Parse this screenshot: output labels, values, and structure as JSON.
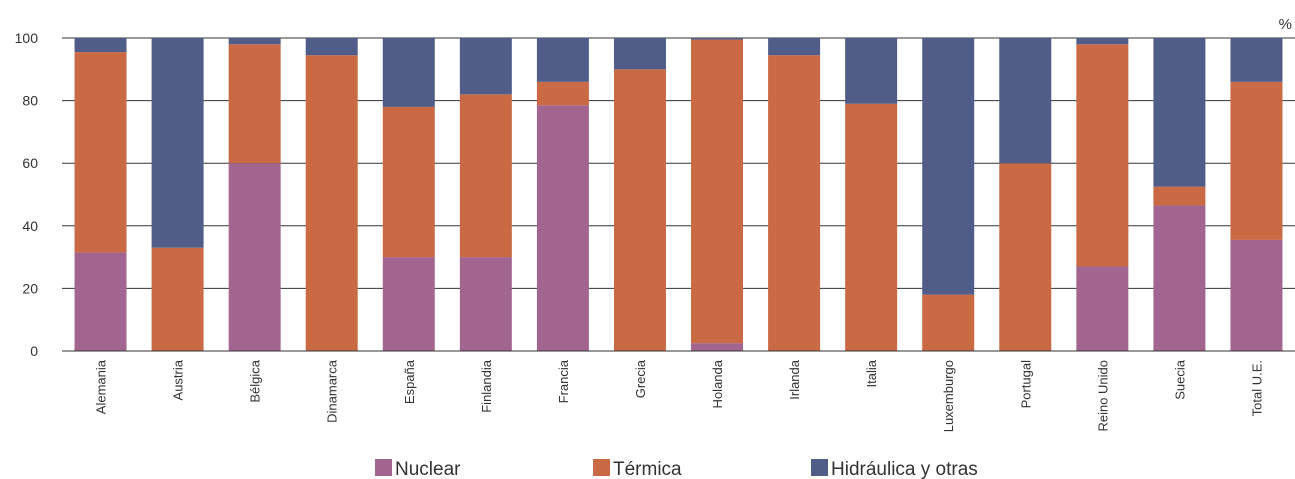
{
  "chart_data": {
    "type": "bar",
    "stacked": true,
    "unit_label": "%",
    "ylim": [
      0,
      100
    ],
    "yticks": [
      0,
      20,
      40,
      60,
      80,
      100
    ],
    "grid": true,
    "legend_position": "bottom",
    "categories": [
      "Alemania",
      "Austria",
      "Bélgica",
      "Dinamarca",
      "España",
      "Finlandia",
      "Francia",
      "Grecia",
      "Holanda",
      "Irlanda",
      "Italia",
      "Luxemburgo",
      "Portugal",
      "Reino Unido",
      "Suecia",
      "Total U.E."
    ],
    "series": [
      {
        "name": "Nuclear",
        "color": "#a2658f",
        "values": [
          31.5,
          0,
          60,
          0,
          30,
          30,
          78.5,
          0,
          2.5,
          0,
          0,
          0,
          0,
          27,
          46.5,
          35.5
        ]
      },
      {
        "name": "Térmica",
        "color": "#c96a45",
        "values": [
          64,
          33,
          38,
          94.5,
          48,
          52,
          7.5,
          90,
          97,
          94.5,
          79,
          18,
          60,
          71,
          6,
          50.5
        ]
      },
      {
        "name": "Hidráulica y otras",
        "color": "#4f5d88",
        "values": [
          4.5,
          67,
          2,
          5.5,
          22,
          18,
          14,
          10,
          0.5,
          5.5,
          21,
          82,
          40,
          2,
          47.5,
          14
        ]
      }
    ]
  }
}
